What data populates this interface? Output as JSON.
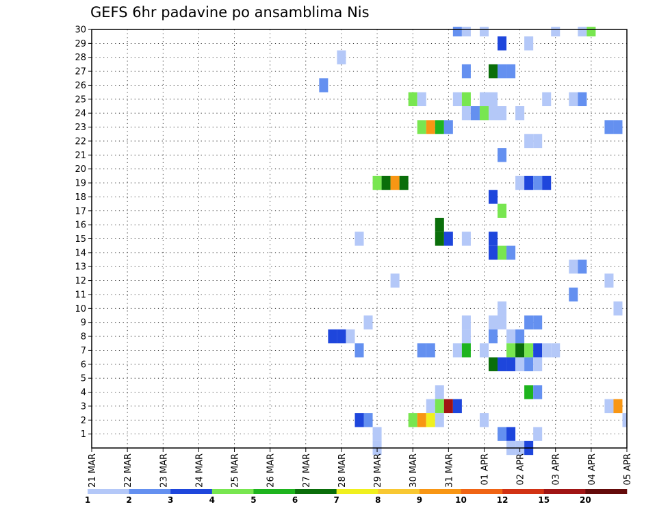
{
  "chart_data": {
    "type": "heatmap",
    "title": "GEFS 6hr padavine po ansamblima Nis",
    "xlabel": "",
    "ylabel": "",
    "x_tick_labels": [
      "21 MAR",
      "22 MAR",
      "23 MAR",
      "24 MAR",
      "25 MAR",
      "26 MAR",
      "27 MAR",
      "28 MAR",
      "29 MAR",
      "30 MAR",
      "31 MAR",
      "01 APR",
      "02 APR",
      "03 APR",
      "04 APR",
      "05 APR"
    ],
    "y_tick_labels": [
      "1",
      "2",
      "3",
      "4",
      "5",
      "6",
      "7",
      "8",
      "9",
      "10",
      "11",
      "12",
      "13",
      "14",
      "15",
      "16",
      "17",
      "18",
      "19",
      "20",
      "21",
      "22",
      "23",
      "24",
      "25",
      "26",
      "27",
      "28",
      "29",
      "30"
    ],
    "xlim": [
      0,
      60
    ],
    "ylim": [
      0,
      30
    ],
    "x_unit": "6-hour steps from 21 MAR 00Z",
    "grid": true,
    "colorbar": {
      "labels": [
        "1",
        "2",
        "3",
        "4",
        "5",
        "6",
        "7",
        "8",
        "9",
        "10",
        "12",
        "15",
        "20"
      ],
      "colors": [
        "#b4c8f8",
        "#6490f0",
        "#1e46dc",
        "#78e650",
        "#1eb41e",
        "#0a6e0a",
        "#f0f01e",
        "#f8c832",
        "#f89614",
        "#f06414",
        "#d23214",
        "#a01414",
        "#640a0a"
      ]
    },
    "cells": [
      [
        41,
        30,
        1
      ],
      [
        42,
        30,
        0
      ],
      [
        44,
        30,
        0
      ],
      [
        52,
        30,
        0
      ],
      [
        55,
        30,
        0
      ],
      [
        56,
        30,
        3
      ],
      [
        46,
        29,
        2
      ],
      [
        49,
        29,
        0
      ],
      [
        28,
        28,
        0
      ],
      [
        42,
        27,
        1
      ],
      [
        45,
        27,
        5
      ],
      [
        46,
        27,
        1
      ],
      [
        47,
        27,
        1
      ],
      [
        26,
        26,
        1
      ],
      [
        36,
        25,
        3
      ],
      [
        37,
        25,
        0
      ],
      [
        41,
        25,
        0
      ],
      [
        42,
        25,
        3
      ],
      [
        44,
        25,
        0
      ],
      [
        45,
        25,
        0
      ],
      [
        51,
        25,
        0
      ],
      [
        54,
        25,
        0
      ],
      [
        55,
        25,
        1
      ],
      [
        42,
        24,
        0
      ],
      [
        43,
        24,
        1
      ],
      [
        44,
        24,
        3
      ],
      [
        45,
        24,
        0
      ],
      [
        46,
        24,
        0
      ],
      [
        48,
        24,
        0
      ],
      [
        37,
        23,
        3
      ],
      [
        38,
        23,
        8
      ],
      [
        39,
        23,
        4
      ],
      [
        40,
        23,
        1
      ],
      [
        58,
        23,
        1
      ],
      [
        59,
        23,
        1
      ],
      [
        49,
        22,
        0
      ],
      [
        50,
        22,
        0
      ],
      [
        46,
        21,
        1
      ],
      [
        32,
        19,
        3
      ],
      [
        33,
        19,
        5
      ],
      [
        34,
        19,
        8
      ],
      [
        35,
        19,
        5
      ],
      [
        48,
        19,
        0
      ],
      [
        49,
        19,
        2
      ],
      [
        50,
        19,
        1
      ],
      [
        51,
        19,
        2
      ],
      [
        45,
        18,
        2
      ],
      [
        46,
        17,
        3
      ],
      [
        39,
        16,
        5
      ],
      [
        30,
        15,
        0
      ],
      [
        39,
        15,
        5
      ],
      [
        40,
        15,
        2
      ],
      [
        42,
        15,
        0
      ],
      [
        45,
        15,
        2
      ],
      [
        45,
        14,
        2
      ],
      [
        46,
        14,
        3
      ],
      [
        47,
        14,
        1
      ],
      [
        54,
        13,
        0
      ],
      [
        55,
        13,
        1
      ],
      [
        34,
        12,
        0
      ],
      [
        58,
        12,
        0
      ],
      [
        54,
        11,
        1
      ],
      [
        46,
        10,
        0
      ],
      [
        59,
        10,
        0
      ],
      [
        31,
        9,
        0
      ],
      [
        42,
        9,
        0
      ],
      [
        45,
        9,
        0
      ],
      [
        46,
        9,
        0
      ],
      [
        49,
        9,
        1
      ],
      [
        50,
        9,
        1
      ],
      [
        27,
        8,
        2
      ],
      [
        28,
        8,
        2
      ],
      [
        29,
        8,
        0
      ],
      [
        42,
        8,
        0
      ],
      [
        45,
        8,
        1
      ],
      [
        47,
        8,
        0
      ],
      [
        48,
        8,
        1
      ],
      [
        30,
        7,
        1
      ],
      [
        37,
        7,
        1
      ],
      [
        38,
        7,
        1
      ],
      [
        41,
        7,
        0
      ],
      [
        42,
        7,
        4
      ],
      [
        44,
        7,
        0
      ],
      [
        47,
        7,
        3
      ],
      [
        48,
        7,
        5
      ],
      [
        49,
        7,
        3
      ],
      [
        50,
        7,
        2
      ],
      [
        51,
        7,
        0
      ],
      [
        52,
        7,
        0
      ],
      [
        45,
        6,
        5
      ],
      [
        46,
        6,
        2
      ],
      [
        47,
        6,
        2
      ],
      [
        48,
        6,
        0
      ],
      [
        49,
        6,
        1
      ],
      [
        50,
        6,
        0
      ],
      [
        39,
        4,
        0
      ],
      [
        49,
        4,
        4
      ],
      [
        50,
        4,
        1
      ],
      [
        38,
        3,
        0
      ],
      [
        39,
        3,
        3
      ],
      [
        40,
        3,
        11
      ],
      [
        41,
        3,
        2
      ],
      [
        58,
        3,
        0
      ],
      [
        59,
        3,
        8
      ],
      [
        30,
        2,
        2
      ],
      [
        31,
        2,
        1
      ],
      [
        36,
        2,
        3
      ],
      [
        37,
        2,
        8
      ],
      [
        38,
        2,
        6
      ],
      [
        39,
        2,
        0
      ],
      [
        44,
        2,
        0
      ],
      [
        60,
        2,
        0
      ],
      [
        32,
        1,
        0
      ],
      [
        46,
        1,
        1
      ],
      [
        47,
        1,
        2
      ],
      [
        50,
        1,
        0
      ],
      [
        32,
        0,
        0
      ],
      [
        47,
        0,
        0
      ],
      [
        48,
        0,
        0
      ],
      [
        49,
        0,
        2
      ]
    ]
  }
}
